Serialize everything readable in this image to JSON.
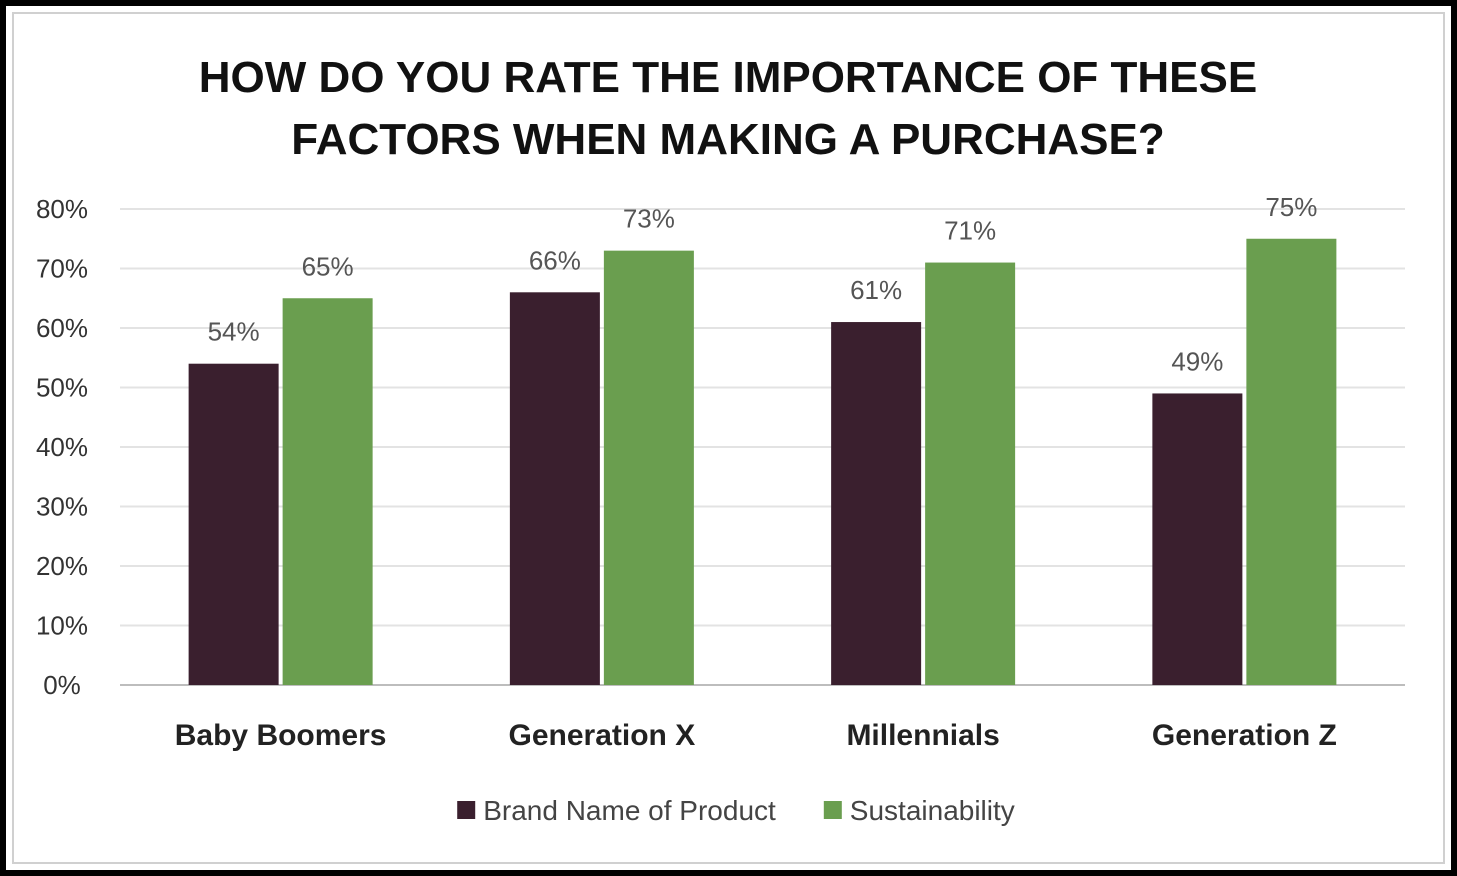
{
  "chart_data": {
    "type": "bar",
    "title_lines": [
      "HOW DO YOU RATE THE IMPORTANCE OF THESE",
      "FACTORS WHEN MAKING A PURCHASE?"
    ],
    "categories": [
      "Baby Boomers",
      "Generation X",
      "Millennials",
      "Generation Z"
    ],
    "series": [
      {
        "name": "Brand Name of Product",
        "color": "#3a1f2e",
        "values": [
          54,
          66,
          61,
          49
        ],
        "labels": [
          "54%",
          "66%",
          "61%",
          "49%"
        ]
      },
      {
        "name": "Sustainability",
        "color": "#6a9e4f",
        "values": [
          65,
          73,
          71,
          75
        ],
        "labels": [
          "65%",
          "73%",
          "71%",
          "75%"
        ]
      }
    ],
    "yticks": [
      "0%",
      "10%",
      "20%",
      "30%",
      "40%",
      "50%",
      "60%",
      "70%",
      "80%"
    ],
    "ylim": [
      0,
      80
    ],
    "grid": true,
    "legend_position": "bottom"
  }
}
